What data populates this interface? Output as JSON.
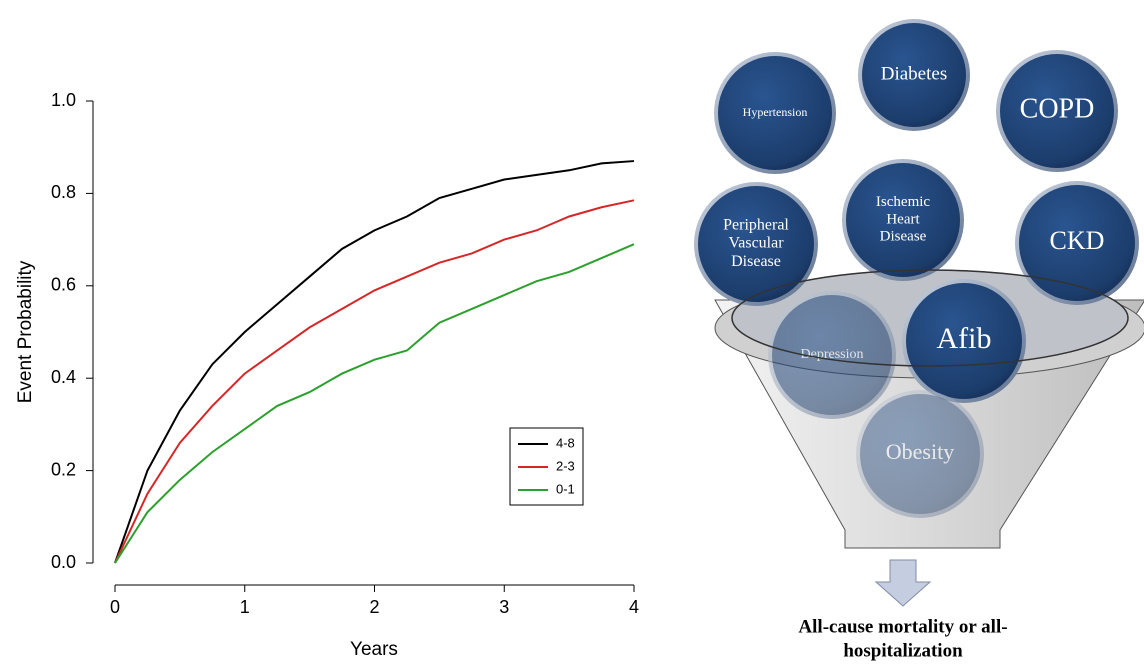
{
  "chart_data": {
    "type": "line",
    "x_label": "Years",
    "y_label": "Event Probability",
    "x": [
      0,
      0.25,
      0.5,
      0.75,
      1,
      1.25,
      1.5,
      1.75,
      2,
      2.25,
      2.5,
      2.75,
      3,
      3.25,
      3.5,
      3.75,
      4
    ],
    "series": [
      {
        "name": "4-8",
        "color": "#000000",
        "values": [
          0,
          0.2,
          0.33,
          0.43,
          0.5,
          0.56,
          0.62,
          0.68,
          0.72,
          0.75,
          0.79,
          0.81,
          0.83,
          0.84,
          0.85,
          0.865,
          0.87
        ]
      },
      {
        "name": "2-3",
        "color": "#d62728",
        "values": [
          0,
          0.15,
          0.26,
          0.34,
          0.41,
          0.46,
          0.51,
          0.55,
          0.59,
          0.62,
          0.65,
          0.67,
          0.7,
          0.72,
          0.75,
          0.77,
          0.785
        ]
      },
      {
        "name": "0-1",
        "color": "#2ca02c",
        "values": [
          0,
          0.11,
          0.18,
          0.24,
          0.29,
          0.34,
          0.37,
          0.41,
          0.44,
          0.46,
          0.52,
          0.55,
          0.58,
          0.61,
          0.63,
          0.66,
          0.69
        ]
      }
    ],
    "xlim": [
      0,
      4
    ],
    "xticks": [
      0,
      1,
      2,
      3,
      4
    ],
    "ylim": [
      0,
      1
    ],
    "yticks": [
      {
        "value": 0,
        "label": "0.0"
      },
      {
        "value": 0.2,
        "label": "0.2"
      },
      {
        "value": 0.4,
        "label": "0.4"
      },
      {
        "value": 0.6,
        "label": "0.6"
      },
      {
        "value": 0.8,
        "label": "0.8"
      },
      {
        "value": 1,
        "label": "1.0"
      }
    ],
    "grid": false,
    "legend": "lower-right"
  },
  "diagram": {
    "circles": [
      {
        "label": [
          "Hypertension"
        ]
      },
      {
        "label": [
          "Diabetes"
        ]
      },
      {
        "label": [
          "COPD"
        ]
      },
      {
        "label": [
          "Peripheral",
          "Vascular",
          "Disease"
        ]
      },
      {
        "label": [
          "Ischemic",
          "Heart",
          "Disease"
        ]
      },
      {
        "label": [
          "CKD"
        ]
      },
      {
        "label": [
          "Afib"
        ]
      },
      {
        "label": [
          "Depression"
        ]
      },
      {
        "label": [
          "Obesity"
        ]
      }
    ],
    "caption": [
      "All-cause mortality or all-",
      "hospitalization"
    ]
  }
}
